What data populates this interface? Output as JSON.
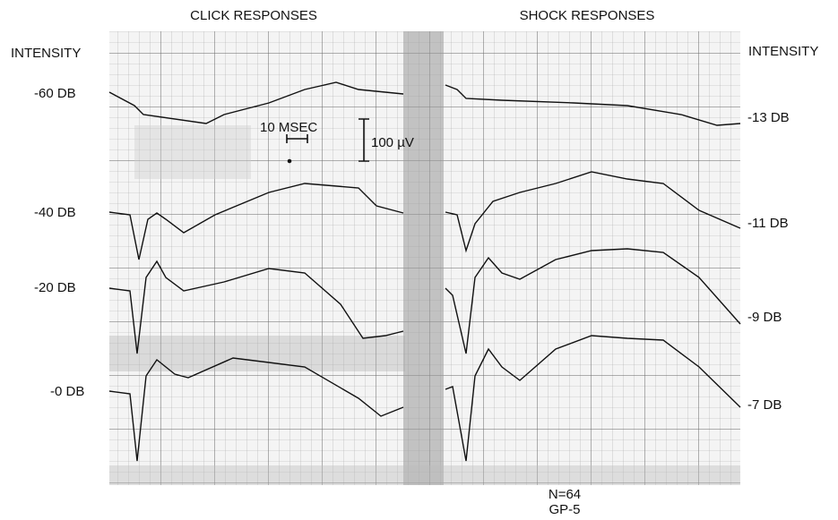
{
  "panels": [
    {
      "title": "CLICK RESPONSES",
      "axis_label": "INTENSITY",
      "traces": [
        "-60 DB",
        "-40 DB",
        "-20 DB",
        "-0 DB"
      ]
    },
    {
      "title": "SHOCK RESPONSES",
      "axis_label": "INTENSITY",
      "traces": [
        "-13 DB",
        "-11 DB",
        "-9 DB",
        "-7 DB"
      ]
    }
  ],
  "scale": {
    "time": "10 MSEC",
    "voltage": "100 µV"
  },
  "footer": [
    "N=64",
    "GP-5"
  ]
}
